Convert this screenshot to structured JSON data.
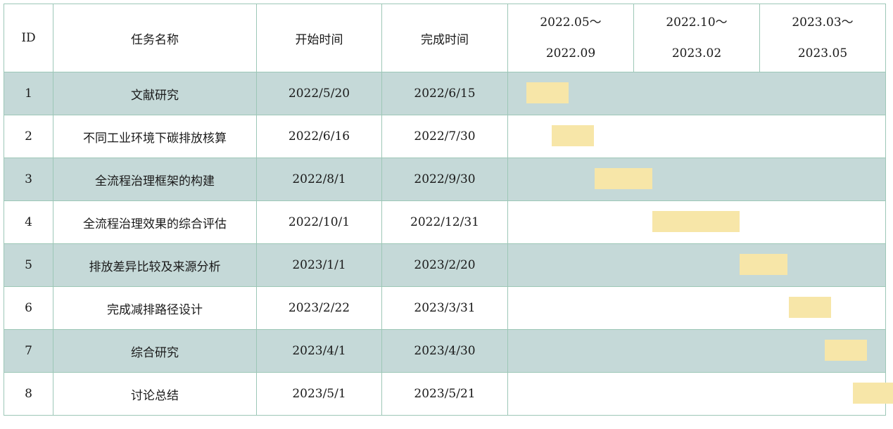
{
  "headers": {
    "id": "ID",
    "task": "任务名称",
    "start": "开始时间",
    "end": "完成时间"
  },
  "periods": [
    {
      "top": "2022.05～",
      "bottom": "2022.09"
    },
    {
      "top": "2022.10～",
      "bottom": "2023.02"
    },
    {
      "top": "2023.03～",
      "bottom": "2023.05"
    }
  ],
  "colors": {
    "row_shade": "#c5d9d8",
    "border": "#9dc7b7",
    "bar": "#f7e6a8"
  },
  "chart_data": {
    "type": "table",
    "columns": [
      "ID",
      "任务名称",
      "开始时间",
      "完成时间"
    ],
    "timeline_range": [
      "2022-05-01",
      "2023-05-31"
    ],
    "rows": [
      {
        "id": "1",
        "task": "文献研究",
        "start": "2022/5/20",
        "end": "2022/6/15"
      },
      {
        "id": "2",
        "task": "不同工业环境下碳排放核算",
        "start": "2022/6/16",
        "end": "2022/7/30"
      },
      {
        "id": "3",
        "task": "全流程治理框架的构建",
        "start": "2022/8/1",
        "end": "2022/9/30"
      },
      {
        "id": "4",
        "task": "全流程治理效果的综合评估",
        "start": "2022/10/1",
        "end": "2022/12/31"
      },
      {
        "id": "5",
        "task": "排放差异比较及来源分析",
        "start": "2023/1/1",
        "end": "2023/2/20"
      },
      {
        "id": "6",
        "task": "完成减排路径设计",
        "start": "2023/2/22",
        "end": "2023/3/31"
      },
      {
        "id": "7",
        "task": "综合研究",
        "start": "2023/4/1",
        "end": "2023/4/30"
      },
      {
        "id": "8",
        "task": "讨论总结",
        "start": "2023/5/1",
        "end": "2023/5/21"
      }
    ]
  }
}
